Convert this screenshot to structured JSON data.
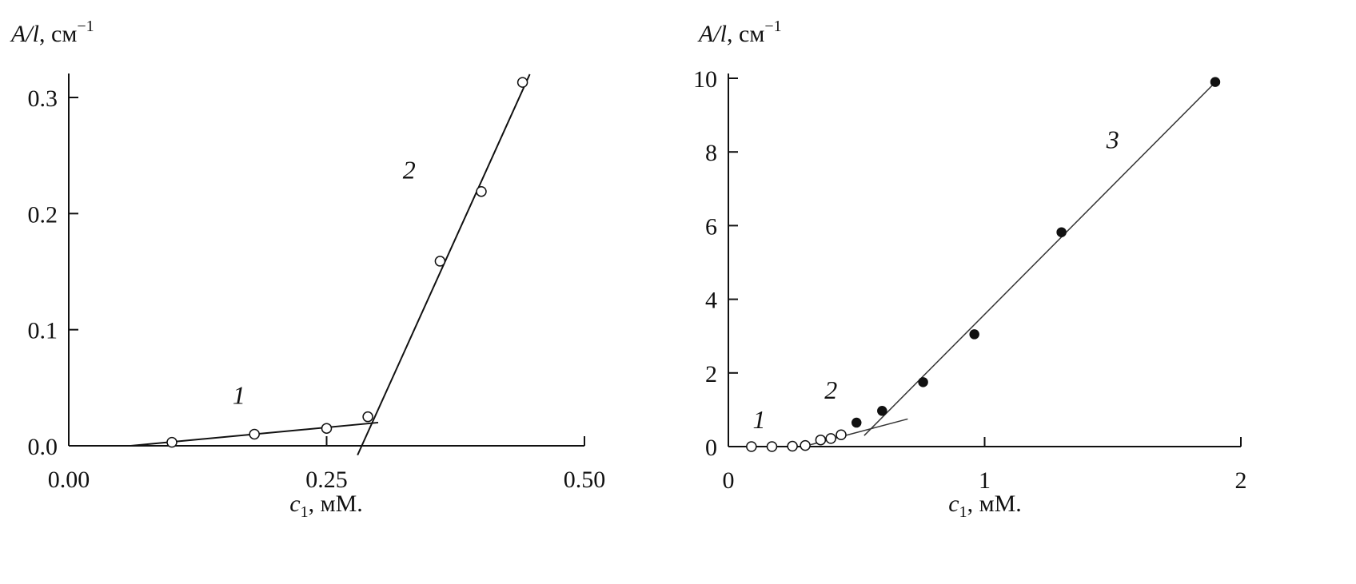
{
  "chart_data": [
    {
      "type": "scatter",
      "ylabel": {
        "sym": "A/l",
        "rest": ", см",
        "sup": "−1"
      },
      "xlabel": {
        "sym": "c",
        "sub": "1",
        "rest": ", мМ."
      },
      "xlim": [
        0,
        0.5
      ],
      "ylim": [
        0,
        0.32
      ],
      "x_ticks": [
        {
          "value": 0,
          "label": "0.00"
        },
        {
          "value": 0.25,
          "label": "0.25"
        },
        {
          "value": 0.5,
          "label": "0.50"
        }
      ],
      "y_ticks": [
        {
          "value": 0,
          "label": "0.0"
        },
        {
          "value": 0.1,
          "label": "0.1"
        },
        {
          "value": 0.2,
          "label": "0.2"
        },
        {
          "value": 0.3,
          "label": "0.3"
        }
      ],
      "series": [
        {
          "label": "1",
          "marker": "open",
          "points": [
            [
              0.1,
              0.003
            ],
            [
              0.18,
              0.01
            ],
            [
              0.25,
              0.015
            ],
            [
              0.29,
              0.025
            ]
          ],
          "fit": [
            [
              0.06,
              0.0
            ],
            [
              0.3,
              0.02
            ]
          ],
          "label_at": [
            0.165,
            0.036
          ]
        },
        {
          "label": "2",
          "marker": "open",
          "points": [
            [
              0.36,
              0.159
            ],
            [
              0.4,
              0.219
            ],
            [
              0.44,
              0.313
            ]
          ],
          "fit": [
            [
              0.28,
              -0.008
            ],
            [
              0.447,
              0.32
            ]
          ],
          "label_at": [
            0.33,
            0.23
          ]
        }
      ]
    },
    {
      "type": "scatter",
      "ylabel": {
        "sym": "A/l",
        "rest": ", см",
        "sup": "−1"
      },
      "xlabel": {
        "sym": "c",
        "sub": "1",
        "rest": ", мМ."
      },
      "xlim": [
        0,
        2
      ],
      "ylim": [
        0,
        10
      ],
      "x_ticks": [
        {
          "value": 0,
          "label": "0"
        },
        {
          "value": 1,
          "label": "1"
        },
        {
          "value": 2,
          "label": "2"
        }
      ],
      "y_ticks": [
        {
          "value": 0,
          "label": "0"
        },
        {
          "value": 2,
          "label": "2"
        },
        {
          "value": 4,
          "label": "4"
        },
        {
          "value": 6,
          "label": "6"
        },
        {
          "value": 8,
          "label": "8"
        },
        {
          "value": 10,
          "label": "10"
        }
      ],
      "series": [
        {
          "label": "1",
          "marker": "open",
          "points": [
            [
              0.09,
              0.0
            ],
            [
              0.17,
              0.0
            ],
            [
              0.25,
              0.01
            ],
            [
              0.3,
              0.03
            ]
          ],
          "fit": null,
          "label_at": [
            0.12,
            0.5
          ]
        },
        {
          "label": "2",
          "marker": "open",
          "points": [
            [
              0.36,
              0.18
            ],
            [
              0.4,
              0.22
            ],
            [
              0.44,
              0.32
            ]
          ],
          "fit": [
            [
              0.32,
              0.05
            ],
            [
              0.7,
              0.75
            ]
          ],
          "label_at": [
            0.4,
            1.3
          ]
        },
        {
          "label": "3",
          "marker": "filled",
          "points": [
            [
              0.5,
              0.65
            ],
            [
              0.6,
              0.97
            ],
            [
              0.76,
              1.75
            ],
            [
              0.96,
              3.05
            ],
            [
              1.3,
              5.82
            ],
            [
              1.9,
              9.9
            ]
          ],
          "fit": [
            [
              0.53,
              0.3
            ],
            [
              1.91,
              9.96
            ]
          ],
          "label_at": [
            1.5,
            8.1
          ]
        }
      ]
    }
  ]
}
